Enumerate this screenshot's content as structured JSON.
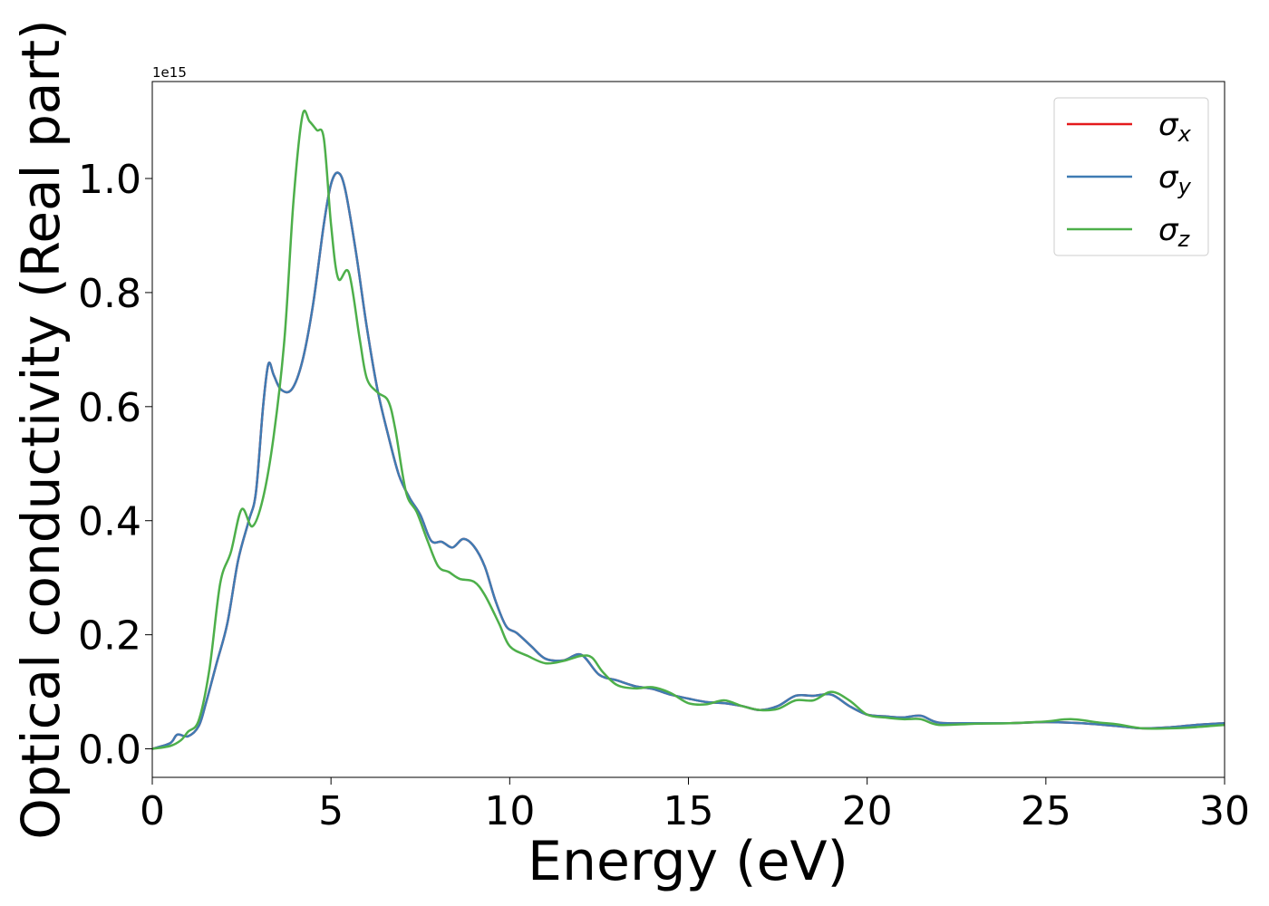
{
  "chart_data": {
    "type": "line",
    "xlabel": "Energy (eV)",
    "ylabel": "Optical conductivity (Real part)",
    "offset_label": "1e15",
    "xlim": [
      0,
      30
    ],
    "ylim": [
      -0.05,
      1.17
    ],
    "xticks": [
      0,
      5,
      10,
      15,
      20,
      25,
      30
    ],
    "xtick_labels": [
      "0",
      "5",
      "10",
      "15",
      "20",
      "25",
      "30"
    ],
    "yticks": [
      0.0,
      0.2,
      0.4,
      0.6,
      0.8,
      1.0
    ],
    "ytick_labels": [
      "0.0",
      "0.2",
      "0.4",
      "0.6",
      "0.8",
      "1.0"
    ],
    "legend_position": "top-right",
    "grid": false,
    "series": [
      {
        "name": "σx",
        "legend_base": "σ",
        "legend_sub": "x",
        "color": "#e41a1c",
        "points": [
          [
            0,
            0.0
          ],
          [
            0.5,
            0.01
          ],
          [
            0.7,
            0.025
          ],
          [
            1.0,
            0.022
          ],
          [
            1.3,
            0.04
          ],
          [
            1.5,
            0.08
          ],
          [
            1.8,
            0.15
          ],
          [
            2.1,
            0.22
          ],
          [
            2.4,
            0.33
          ],
          [
            2.7,
            0.4
          ],
          [
            2.9,
            0.45
          ],
          [
            3.1,
            0.6
          ],
          [
            3.25,
            0.675
          ],
          [
            3.4,
            0.655
          ],
          [
            3.6,
            0.63
          ],
          [
            3.9,
            0.63
          ],
          [
            4.2,
            0.68
          ],
          [
            4.5,
            0.78
          ],
          [
            4.8,
            0.92
          ],
          [
            5.0,
            0.99
          ],
          [
            5.2,
            1.01
          ],
          [
            5.4,
            0.98
          ],
          [
            5.7,
            0.87
          ],
          [
            6.0,
            0.74
          ],
          [
            6.3,
            0.63
          ],
          [
            6.6,
            0.55
          ],
          [
            6.9,
            0.48
          ],
          [
            7.2,
            0.44
          ],
          [
            7.5,
            0.41
          ],
          [
            7.8,
            0.365
          ],
          [
            8.1,
            0.363
          ],
          [
            8.4,
            0.353
          ],
          [
            8.7,
            0.368
          ],
          [
            9.0,
            0.355
          ],
          [
            9.3,
            0.32
          ],
          [
            9.6,
            0.26
          ],
          [
            9.9,
            0.215
          ],
          [
            10.2,
            0.203
          ],
          [
            10.6,
            0.18
          ],
          [
            11.0,
            0.158
          ],
          [
            11.5,
            0.155
          ],
          [
            12.0,
            0.165
          ],
          [
            12.5,
            0.13
          ],
          [
            13.0,
            0.12
          ],
          [
            13.5,
            0.11
          ],
          [
            14.0,
            0.105
          ],
          [
            14.5,
            0.095
          ],
          [
            15.0,
            0.088
          ],
          [
            15.5,
            0.082
          ],
          [
            16.0,
            0.08
          ],
          [
            16.5,
            0.075
          ],
          [
            17.0,
            0.068
          ],
          [
            17.5,
            0.075
          ],
          [
            18.0,
            0.093
          ],
          [
            18.5,
            0.093
          ],
          [
            19.0,
            0.095
          ],
          [
            19.5,
            0.075
          ],
          [
            20.0,
            0.06
          ],
          [
            20.5,
            0.057
          ],
          [
            21.0,
            0.055
          ],
          [
            21.5,
            0.058
          ],
          [
            22.0,
            0.046
          ],
          [
            23.0,
            0.045
          ],
          [
            24.0,
            0.045
          ],
          [
            25.0,
            0.047
          ],
          [
            26.0,
            0.045
          ],
          [
            27.0,
            0.04
          ],
          [
            27.7,
            0.036
          ],
          [
            28.5,
            0.038
          ],
          [
            29.2,
            0.042
          ],
          [
            30.0,
            0.045
          ]
        ]
      },
      {
        "name": "σy",
        "legend_base": "σ",
        "legend_sub": "y",
        "color": "#3f7bb3",
        "points": [
          [
            0,
            0.0
          ],
          [
            0.5,
            0.01
          ],
          [
            0.7,
            0.025
          ],
          [
            1.0,
            0.022
          ],
          [
            1.3,
            0.04
          ],
          [
            1.5,
            0.08
          ],
          [
            1.8,
            0.15
          ],
          [
            2.1,
            0.22
          ],
          [
            2.4,
            0.33
          ],
          [
            2.7,
            0.4
          ],
          [
            2.9,
            0.45
          ],
          [
            3.1,
            0.6
          ],
          [
            3.25,
            0.675
          ],
          [
            3.4,
            0.655
          ],
          [
            3.6,
            0.63
          ],
          [
            3.9,
            0.63
          ],
          [
            4.2,
            0.68
          ],
          [
            4.5,
            0.78
          ],
          [
            4.8,
            0.92
          ],
          [
            5.0,
            0.99
          ],
          [
            5.2,
            1.01
          ],
          [
            5.4,
            0.98
          ],
          [
            5.7,
            0.87
          ],
          [
            6.0,
            0.74
          ],
          [
            6.3,
            0.63
          ],
          [
            6.6,
            0.55
          ],
          [
            6.9,
            0.48
          ],
          [
            7.2,
            0.44
          ],
          [
            7.5,
            0.41
          ],
          [
            7.8,
            0.365
          ],
          [
            8.1,
            0.363
          ],
          [
            8.4,
            0.353
          ],
          [
            8.7,
            0.368
          ],
          [
            9.0,
            0.355
          ],
          [
            9.3,
            0.32
          ],
          [
            9.6,
            0.26
          ],
          [
            9.9,
            0.215
          ],
          [
            10.2,
            0.203
          ],
          [
            10.6,
            0.18
          ],
          [
            11.0,
            0.158
          ],
          [
            11.5,
            0.155
          ],
          [
            12.0,
            0.165
          ],
          [
            12.5,
            0.13
          ],
          [
            13.0,
            0.12
          ],
          [
            13.5,
            0.11
          ],
          [
            14.0,
            0.105
          ],
          [
            14.5,
            0.095
          ],
          [
            15.0,
            0.088
          ],
          [
            15.5,
            0.082
          ],
          [
            16.0,
            0.08
          ],
          [
            16.5,
            0.075
          ],
          [
            17.0,
            0.068
          ],
          [
            17.5,
            0.075
          ],
          [
            18.0,
            0.093
          ],
          [
            18.5,
            0.093
          ],
          [
            19.0,
            0.095
          ],
          [
            19.5,
            0.075
          ],
          [
            20.0,
            0.06
          ],
          [
            20.5,
            0.057
          ],
          [
            21.0,
            0.055
          ],
          [
            21.5,
            0.058
          ],
          [
            22.0,
            0.046
          ],
          [
            23.0,
            0.045
          ],
          [
            24.0,
            0.045
          ],
          [
            25.0,
            0.047
          ],
          [
            26.0,
            0.045
          ],
          [
            27.0,
            0.04
          ],
          [
            27.7,
            0.036
          ],
          [
            28.5,
            0.038
          ],
          [
            29.2,
            0.042
          ],
          [
            30.0,
            0.045
          ]
        ]
      },
      {
        "name": "σz",
        "legend_base": "σ",
        "legend_sub": "z",
        "color": "#4daf4a",
        "points": [
          [
            0,
            0.0
          ],
          [
            0.5,
            0.005
          ],
          [
            0.8,
            0.015
          ],
          [
            1.0,
            0.03
          ],
          [
            1.3,
            0.05
          ],
          [
            1.6,
            0.14
          ],
          [
            1.9,
            0.29
          ],
          [
            2.2,
            0.345
          ],
          [
            2.5,
            0.42
          ],
          [
            2.8,
            0.39
          ],
          [
            3.1,
            0.44
          ],
          [
            3.4,
            0.55
          ],
          [
            3.7,
            0.72
          ],
          [
            3.95,
            0.96
          ],
          [
            4.2,
            1.11
          ],
          [
            4.4,
            1.1
          ],
          [
            4.6,
            1.085
          ],
          [
            4.8,
            1.07
          ],
          [
            5.0,
            0.92
          ],
          [
            5.2,
            0.825
          ],
          [
            5.5,
            0.835
          ],
          [
            5.8,
            0.72
          ],
          [
            6.0,
            0.65
          ],
          [
            6.3,
            0.625
          ],
          [
            6.6,
            0.61
          ],
          [
            6.8,
            0.56
          ],
          [
            7.1,
            0.45
          ],
          [
            7.4,
            0.415
          ],
          [
            7.7,
            0.365
          ],
          [
            8.0,
            0.32
          ],
          [
            8.3,
            0.31
          ],
          [
            8.6,
            0.298
          ],
          [
            9.0,
            0.293
          ],
          [
            9.3,
            0.27
          ],
          [
            9.7,
            0.22
          ],
          [
            10.0,
            0.18
          ],
          [
            10.5,
            0.163
          ],
          [
            11.0,
            0.15
          ],
          [
            11.5,
            0.154
          ],
          [
            12.0,
            0.163
          ],
          [
            12.3,
            0.16
          ],
          [
            12.6,
            0.135
          ],
          [
            13.0,
            0.112
          ],
          [
            13.5,
            0.106
          ],
          [
            14.0,
            0.108
          ],
          [
            14.5,
            0.098
          ],
          [
            15.0,
            0.08
          ],
          [
            15.5,
            0.078
          ],
          [
            16.0,
            0.085
          ],
          [
            16.5,
            0.075
          ],
          [
            17.0,
            0.068
          ],
          [
            17.5,
            0.07
          ],
          [
            18.0,
            0.085
          ],
          [
            18.5,
            0.085
          ],
          [
            19.0,
            0.1
          ],
          [
            19.5,
            0.085
          ],
          [
            20.0,
            0.06
          ],
          [
            20.5,
            0.055
          ],
          [
            21.0,
            0.052
          ],
          [
            21.5,
            0.052
          ],
          [
            22.0,
            0.042
          ],
          [
            23.0,
            0.044
          ],
          [
            24.0,
            0.045
          ],
          [
            25.0,
            0.048
          ],
          [
            25.7,
            0.052
          ],
          [
            26.5,
            0.046
          ],
          [
            27.0,
            0.043
          ],
          [
            27.7,
            0.036
          ],
          [
            28.5,
            0.036
          ],
          [
            29.2,
            0.038
          ],
          [
            30.0,
            0.042
          ]
        ]
      }
    ]
  }
}
